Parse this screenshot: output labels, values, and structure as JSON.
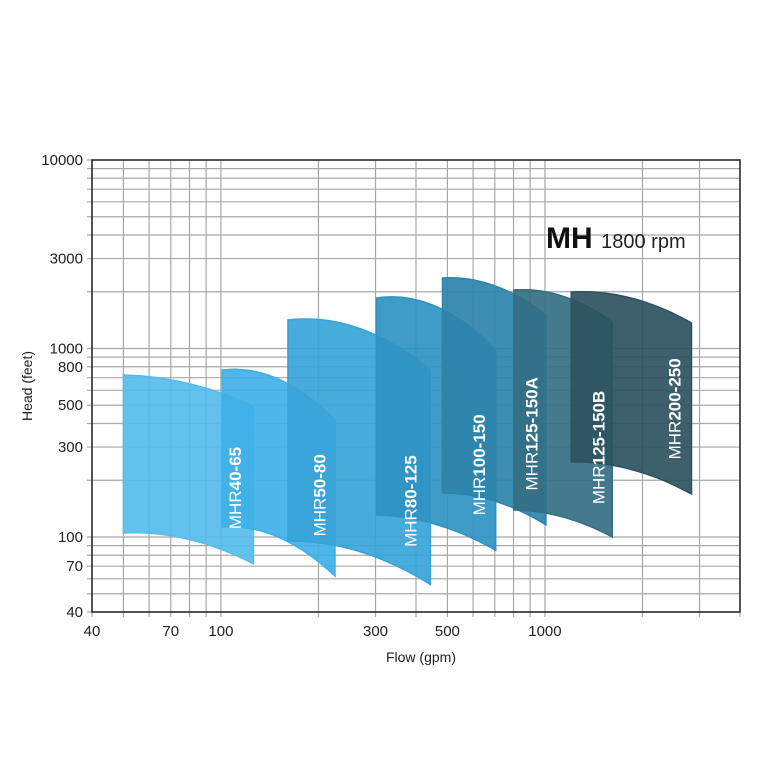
{
  "chart_data": {
    "type": "area",
    "title_bold": "MH",
    "title_rest": "1800 rpm",
    "xlabel": "Flow (gpm)",
    "ylabel": "Head (feet)",
    "xscale": "log",
    "yscale": "log",
    "xlim": [
      40,
      4000
    ],
    "ylim": [
      40,
      10000
    ],
    "grid": true,
    "xticks": [
      40,
      70,
      100,
      300,
      500,
      1000
    ],
    "xtick_labels": [
      "40",
      "70",
      "100",
      "300",
      "500",
      "1000"
    ],
    "yticks": [
      10000,
      3000,
      1000,
      800,
      500,
      300,
      100,
      70,
      40
    ],
    "ytick_labels": [
      "10000",
      "3000",
      "1000",
      "800",
      "500",
      "300",
      "100",
      "70",
      "40"
    ],
    "series": [
      {
        "name": "MHR40-65",
        "prefix": "MHR",
        "model": "40-65",
        "color": "#55bdec",
        "top": [
          [
            50,
            723
          ],
          [
            80,
            650
          ],
          [
            126,
            495
          ]
        ],
        "bottom": [
          [
            50,
            105
          ],
          [
            80,
            97
          ],
          [
            126,
            72
          ]
        ]
      },
      {
        "name": "MHR50-80",
        "prefix": "MHR",
        "model": "50-80",
        "color": "#3fb0e6",
        "top": [
          [
            101,
            769
          ],
          [
            150,
            690
          ],
          [
            225,
            418
          ]
        ],
        "bottom": [
          [
            101,
            113
          ],
          [
            150,
            100
          ],
          [
            225,
            62
          ]
        ]
      },
      {
        "name": "MHR80-125",
        "prefix": "MHR",
        "model": "80-125",
        "color": "#37a4d8",
        "top": [
          [
            161,
            1416
          ],
          [
            260,
            1300
          ],
          [
            443,
            769
          ]
        ],
        "bottom": [
          [
            161,
            95
          ],
          [
            260,
            85
          ],
          [
            443,
            56
          ]
        ]
      },
      {
        "name": "MHR100-150",
        "prefix": "MHR",
        "model": "100-150",
        "color": "#2f93c2",
        "top": [
          [
            302,
            1853
          ],
          [
            450,
            1700
          ],
          [
            705,
            982
          ]
        ],
        "bottom": [
          [
            302,
            131
          ],
          [
            450,
            118
          ],
          [
            705,
            85
          ]
        ]
      },
      {
        "name": "MHR125-150A",
        "prefix": "MHR",
        "model": "125-150A",
        "color": "#2c84aa",
        "top": [
          [
            483,
            2366
          ],
          [
            700,
            2150
          ],
          [
            1007,
            1507
          ]
        ],
        "bottom": [
          [
            483,
            171
          ],
          [
            700,
            155
          ],
          [
            1007,
            116
          ]
        ]
      },
      {
        "name": "MHR125-150B",
        "prefix": "MHR",
        "model": "125-150B",
        "color": "#336f84",
        "top": [
          [
            802,
            2043
          ],
          [
            1130,
            1900
          ],
          [
            1614,
            1383
          ]
        ],
        "bottom": [
          [
            802,
            139
          ],
          [
            1130,
            128
          ],
          [
            1614,
            100
          ]
        ]
      },
      {
        "name": "MHR200-250",
        "prefix": "MHR",
        "model": "200-250",
        "color": "#2e5260",
        "top": [
          [
            1205,
            1995
          ],
          [
            1850,
            1850
          ],
          [
            2833,
            1365
          ]
        ],
        "bottom": [
          [
            1205,
            250
          ],
          [
            1850,
            228
          ],
          [
            2833,
            169
          ]
        ]
      }
    ]
  }
}
